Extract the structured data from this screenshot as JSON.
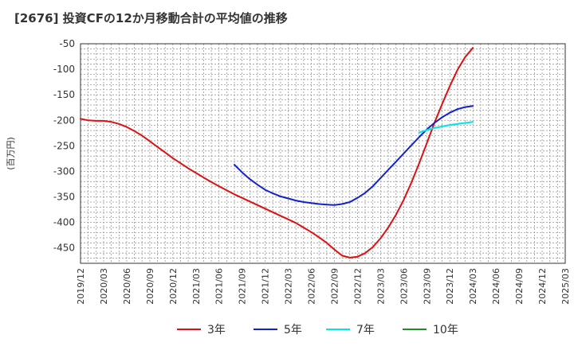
{
  "chart_data": {
    "type": "line",
    "title": "[2676]  投資CFの12か月移動合計の平均値の推移",
    "ylabel": "(百万円)",
    "xlabel": "",
    "ylim": [
      -480,
      -50
    ],
    "yticks": [
      -50,
      -100,
      -150,
      -200,
      -250,
      -300,
      -350,
      -400,
      -450
    ],
    "xticks": [
      "2019/12",
      "2020/03",
      "2020/06",
      "2020/09",
      "2020/12",
      "2021/03",
      "2021/06",
      "2021/09",
      "2021/12",
      "2022/03",
      "2022/06",
      "2022/09",
      "2022/12",
      "2023/03",
      "2023/06",
      "2023/09",
      "2023/12",
      "2024/03",
      "2024/06",
      "2024/09",
      "2024/12",
      "2025/03"
    ],
    "grid": true,
    "legend_position": "bottom",
    "series": [
      {
        "name": "3年",
        "color": "#dd1111",
        "points": [
          [
            "2019/12",
            -197
          ],
          [
            "2020/01",
            -200
          ],
          [
            "2020/02",
            -201
          ],
          [
            "2020/03",
            -201
          ],
          [
            "2020/04",
            -203
          ],
          [
            "2020/05",
            -207
          ],
          [
            "2020/06",
            -213
          ],
          [
            "2020/07",
            -221
          ],
          [
            "2020/08",
            -230
          ],
          [
            "2020/09",
            -241
          ],
          [
            "2020/10",
            -252
          ],
          [
            "2020/11",
            -263
          ],
          [
            "2020/12",
            -274
          ],
          [
            "2021/01",
            -284
          ],
          [
            "2021/02",
            -294
          ],
          [
            "2021/03",
            -303
          ],
          [
            "2021/04",
            -312
          ],
          [
            "2021/05",
            -321
          ],
          [
            "2021/06",
            -329
          ],
          [
            "2021/07",
            -337
          ],
          [
            "2021/08",
            -345
          ],
          [
            "2021/09",
            -352
          ],
          [
            "2021/10",
            -359
          ],
          [
            "2021/11",
            -366
          ],
          [
            "2021/12",
            -373
          ],
          [
            "2022/01",
            -380
          ],
          [
            "2022/02",
            -387
          ],
          [
            "2022/03",
            -394
          ],
          [
            "2022/04",
            -401
          ],
          [
            "2022/05",
            -410
          ],
          [
            "2022/06",
            -419
          ],
          [
            "2022/07",
            -429
          ],
          [
            "2022/08",
            -440
          ],
          [
            "2022/09",
            -453
          ],
          [
            "2022/10",
            -465
          ],
          [
            "2022/11",
            -469
          ],
          [
            "2022/12",
            -467
          ],
          [
            "2023/01",
            -460
          ],
          [
            "2023/02",
            -448
          ],
          [
            "2023/03",
            -431
          ],
          [
            "2023/04",
            -410
          ],
          [
            "2023/05",
            -385
          ],
          [
            "2023/06",
            -356
          ],
          [
            "2023/07",
            -322
          ],
          [
            "2023/08",
            -285
          ],
          [
            "2023/09",
            -245
          ],
          [
            "2023/10",
            -205
          ],
          [
            "2023/11",
            -168
          ],
          [
            "2023/12",
            -133
          ],
          [
            "2024/01",
            -101
          ],
          [
            "2024/02",
            -76
          ],
          [
            "2024/03",
            -58
          ]
        ]
      },
      {
        "name": "5年",
        "color": "#1122cc",
        "points": [
          [
            "2021/08",
            -287
          ],
          [
            "2021/09",
            -302
          ],
          [
            "2021/10",
            -315
          ],
          [
            "2021/11",
            -326
          ],
          [
            "2021/12",
            -336
          ],
          [
            "2022/01",
            -343
          ],
          [
            "2022/02",
            -349
          ],
          [
            "2022/03",
            -353
          ],
          [
            "2022/04",
            -357
          ],
          [
            "2022/05",
            -360
          ],
          [
            "2022/06",
            -362
          ],
          [
            "2022/07",
            -364
          ],
          [
            "2022/08",
            -365
          ],
          [
            "2022/09",
            -366
          ],
          [
            "2022/10",
            -364
          ],
          [
            "2022/11",
            -360
          ],
          [
            "2022/12",
            -352
          ],
          [
            "2023/01",
            -342
          ],
          [
            "2023/02",
            -329
          ],
          [
            "2023/03",
            -313
          ],
          [
            "2023/04",
            -297
          ],
          [
            "2023/05",
            -281
          ],
          [
            "2023/06",
            -265
          ],
          [
            "2023/07",
            -249
          ],
          [
            "2023/08",
            -233
          ],
          [
            "2023/09",
            -218
          ],
          [
            "2023/10",
            -205
          ],
          [
            "2023/11",
            -194
          ],
          [
            "2023/12",
            -185
          ],
          [
            "2024/01",
            -178
          ],
          [
            "2024/02",
            -174
          ],
          [
            "2024/03",
            -172
          ]
        ]
      },
      {
        "name": "7年",
        "color": "#00e5e5",
        "points": [
          [
            "2023/08",
            -224
          ],
          [
            "2023/09",
            -219
          ],
          [
            "2023/10",
            -215
          ],
          [
            "2023/11",
            -212
          ],
          [
            "2023/12",
            -209
          ],
          [
            "2024/01",
            -207
          ],
          [
            "2024/02",
            -205
          ],
          [
            "2024/03",
            -203
          ]
        ]
      },
      {
        "name": "10年",
        "color": "#228b22",
        "points": []
      }
    ]
  }
}
